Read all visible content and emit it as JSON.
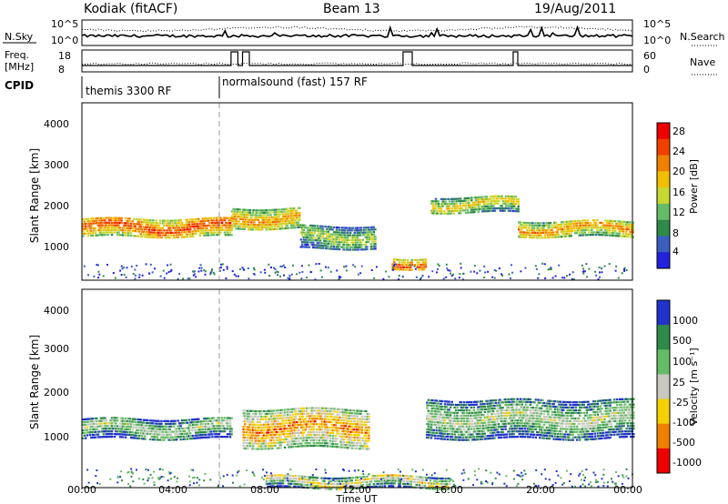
{
  "header": {
    "station": "Kodiak (fitACF)",
    "beam": "Beam 13",
    "date": "19/Aug/2011"
  },
  "strip": {
    "nsky_label": "N.Sky",
    "nsearch_label": "N.Search",
    "freq_label": "Freq.",
    "freq_unit": "[MHz]",
    "nave_label": "Nave",
    "cpid_label": "CPID",
    "nsky_ticks": [
      "10^5",
      "10^0"
    ],
    "nsearch_ticks": [
      "10^5",
      "10^0"
    ],
    "freq_ticks": [
      "18",
      "8"
    ],
    "nave_ticks": [
      "60",
      "0"
    ],
    "cpid_segments": [
      {
        "label": "themis 3300 RF",
        "start_hour": 0
      },
      {
        "label": "normalsound (fast) 157 RF",
        "start_hour": 6
      }
    ],
    "freq_high_intervals": [
      [
        6.5,
        6.8
      ],
      [
        7.0,
        7.3
      ],
      [
        14.0,
        14.4
      ],
      [
        18.8,
        19.0
      ]
    ]
  },
  "colors": {
    "power_scale": [
      "#2222dd",
      "#3a5fc0",
      "#2f8a4a",
      "#66bb66",
      "#c8d830",
      "#f0c000",
      "#f08000",
      "#f04000",
      "#ee0000"
    ],
    "velocity_scale": [
      "#2233cc",
      "#2f8a4a",
      "#66bb66",
      "#c8c8c0",
      "#f5d000",
      "#f08000",
      "#ee0000"
    ]
  },
  "chart_data": [
    {
      "type": "heatmap",
      "name": "power",
      "ylabel": "Slant Range [km]",
      "xlabel": "",
      "ylim": [
        180,
        4600
      ],
      "xlim_hours": [
        0,
        24
      ],
      "yticks": [
        "1000",
        "2000",
        "3000",
        "4000"
      ],
      "xticks": [
        "00:00",
        "04:00",
        "08:00",
        "12:00",
        "16:00",
        "20:00",
        "00:00"
      ],
      "colorbar_label": "Power [dB]",
      "colorbar_ticks": [
        "4",
        "8",
        "12",
        "16",
        "20",
        "24",
        "28"
      ],
      "bands": [
        {
          "t0": 0,
          "t1": 6.5,
          "r0": 1300,
          "r1": 1750,
          "level": 7
        },
        {
          "t0": 6.5,
          "t1": 9.5,
          "r0": 1500,
          "r1": 2000,
          "level": 6
        },
        {
          "t0": 9.5,
          "t1": 12.8,
          "r0": 1000,
          "r1": 1600,
          "level": 4
        },
        {
          "t0": 15.2,
          "t1": 19.0,
          "r0": 1900,
          "r1": 2300,
          "level": 5
        },
        {
          "t0": 19.0,
          "t1": 24,
          "r0": 1300,
          "r1": 1700,
          "level": 6
        },
        {
          "t0": 13.5,
          "t1": 15.0,
          "r0": 500,
          "r1": 800,
          "level": 7
        }
      ]
    },
    {
      "type": "heatmap",
      "name": "velocity",
      "ylabel": "Slant Range [km]",
      "xlabel": "Time UT",
      "ylim": [
        180,
        4600
      ],
      "xlim_hours": [
        0,
        24
      ],
      "yticks": [
        "1000",
        "2000",
        "3000",
        "4000"
      ],
      "xticks": [
        "00:00",
        "04:00",
        "08:00",
        "12:00",
        "16:00",
        "20:00",
        "00:00"
      ],
      "colorbar_label": "Velocity [m s⁻¹]",
      "colorbar_ticks": [
        "1000",
        "500",
        "100",
        "25",
        "-25",
        "-100",
        "-500",
        "-1000"
      ],
      "bands": [
        {
          "t0": 0,
          "t1": 6.5,
          "r0": 1300,
          "r1": 1750,
          "level": 3
        },
        {
          "t0": 7.0,
          "t1": 12.5,
          "r0": 1100,
          "r1": 2000,
          "level": 5
        },
        {
          "t0": 15.0,
          "t1": 24,
          "r0": 1300,
          "r1": 2200,
          "level": 3
        },
        {
          "t0": 8.0,
          "t1": 16.0,
          "r0": 200,
          "r1": 500,
          "level": 4
        }
      ]
    }
  ]
}
